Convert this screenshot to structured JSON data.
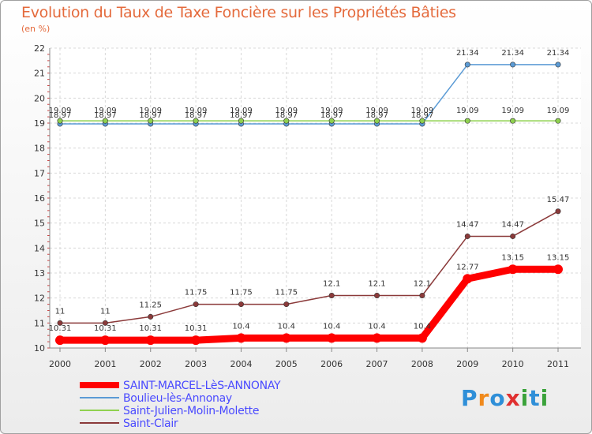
{
  "title": "Evolution du Taux de Taxe Foncière sur les Propriétés Bâties",
  "subtitle": "(en %)",
  "logo": {
    "chars": [
      "P",
      "r",
      "o",
      "x",
      "i",
      "t",
      "i"
    ],
    "colors": [
      "#2f8fd8",
      "#f08a1c",
      "#2f8fd8",
      "#e03030",
      "#3aa23a",
      "#2f8fd8",
      "#3aa23a"
    ]
  },
  "chart_data": {
    "type": "line",
    "x": [
      "2000",
      "2001",
      "2002",
      "2003",
      "2004",
      "2005",
      "2006",
      "2007",
      "2008",
      "2009",
      "2010",
      "2011"
    ],
    "ylim": [
      10,
      22
    ],
    "yticks": [
      "10",
      "11",
      "12",
      "13",
      "14",
      "15",
      "16",
      "17",
      "18",
      "19",
      "20",
      "21",
      "22"
    ],
    "series": [
      {
        "name": "SAINT-MARCEL-LèS-ANNONAY",
        "color": "#ff0000",
        "values": [
          10.31,
          10.31,
          10.31,
          10.31,
          10.4,
          10.4,
          10.4,
          10.4,
          10.4,
          12.77,
          13.15,
          13.15
        ],
        "labels": [
          "10.31",
          "10.31",
          "10.31",
          "10.31",
          "10.4",
          "10.4",
          "10.4",
          "10.4",
          "10.4",
          "12.77",
          "13.15",
          "13.15"
        ]
      },
      {
        "name": "Boulieu-lès-Annonay",
        "color": "#5b9bd5",
        "values": [
          18.97,
          18.97,
          18.97,
          18.97,
          18.97,
          18.97,
          18.97,
          18.97,
          18.97,
          21.34,
          21.34,
          21.34
        ],
        "labels": [
          "18.97",
          "18.97",
          "18.97",
          "18.97",
          "18.97",
          "18.97",
          "18.97",
          "18.97",
          "18.97",
          "21.34",
          "21.34",
          "21.34"
        ]
      },
      {
        "name": "Saint-Julien-Molin-Molette",
        "color": "#8fd14f",
        "values": [
          19.09,
          19.09,
          19.09,
          19.09,
          19.09,
          19.09,
          19.09,
          19.09,
          19.09,
          19.09,
          19.09,
          19.09
        ],
        "labels": [
          "19.09",
          "19.09",
          "19.09",
          "19.09",
          "19.09",
          "19.09",
          "19.09",
          "19.09",
          "19.09",
          "19.09",
          "19.09",
          "19.09"
        ]
      },
      {
        "name": "Saint-Clair",
        "color": "#8b3a3a",
        "values": [
          11,
          11,
          11.25,
          11.75,
          11.75,
          11.75,
          12.1,
          12.1,
          12.1,
          14.47,
          14.47,
          15.47
        ],
        "labels": [
          "11",
          "11",
          "11.25",
          "11.75",
          "11.75",
          "11.75",
          "12.1",
          "12.1",
          "12.1",
          "14.47",
          "14.47",
          "15.47"
        ]
      }
    ]
  }
}
